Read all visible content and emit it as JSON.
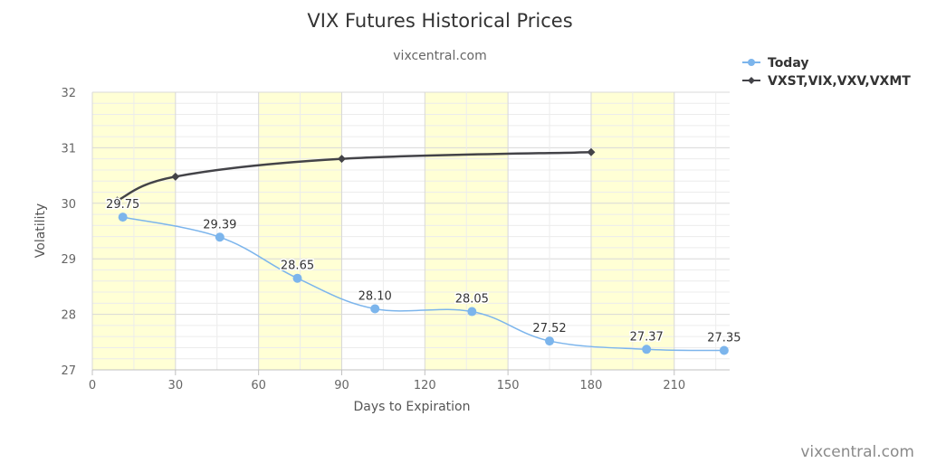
{
  "chart_data": {
    "type": "line",
    "title": "VIX Futures Historical Prices",
    "subtitle": "vixcentral.com",
    "xlabel": "Days to Expiration",
    "ylabel": "Volatility",
    "xlim": [
      0,
      230
    ],
    "ylim": [
      27,
      32
    ],
    "xticks": [
      "0",
      "30",
      "60",
      "90",
      "120",
      "150",
      "180",
      "210"
    ],
    "yticks": [
      "27",
      "28",
      "29",
      "30",
      "31",
      "32"
    ],
    "grid": true,
    "legend_position": "top-right",
    "bands": [
      [
        0,
        30
      ],
      [
        60,
        90
      ],
      [
        120,
        150
      ],
      [
        180,
        210
      ]
    ],
    "band_color": "#ffffd5",
    "series": [
      {
        "name": "Today",
        "color": "#7cb5ec",
        "marker": "circle",
        "x": [
          11,
          46,
          74,
          102,
          137,
          165,
          200,
          228
        ],
        "y": [
          29.75,
          29.39,
          28.65,
          28.1,
          28.05,
          27.52,
          27.37,
          27.35
        ],
        "labels": [
          "29.75",
          "29.39",
          "28.65",
          "28.10",
          "28.05",
          "27.52",
          "27.37",
          "27.35"
        ]
      },
      {
        "name": "VXST,VIX,VXV,VXMT",
        "color": "#434348",
        "marker": "diamond",
        "x": [
          9,
          30,
          90,
          180
        ],
        "y": [
          30.05,
          30.48,
          30.8,
          30.92
        ]
      }
    ]
  },
  "credits": "vixcentral.com"
}
